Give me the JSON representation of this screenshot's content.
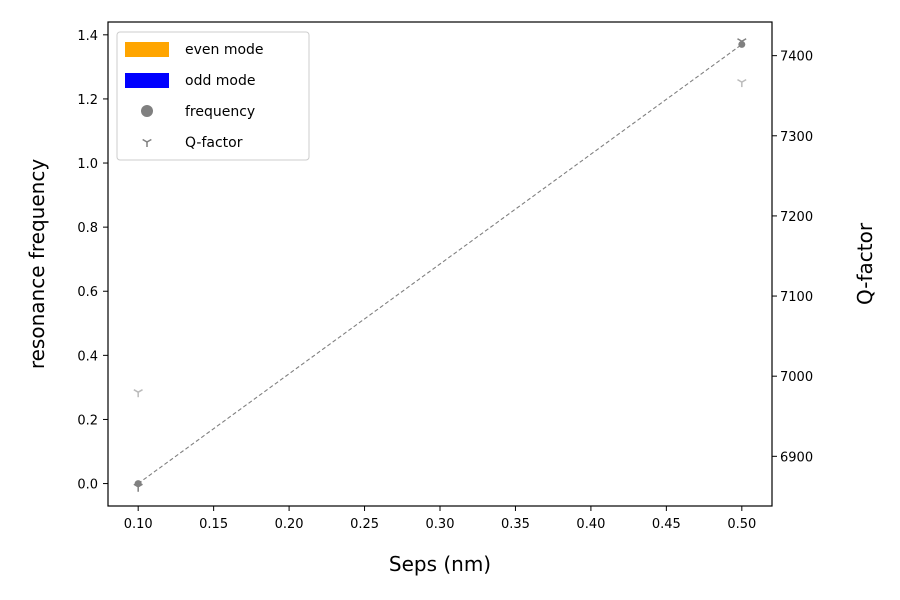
{
  "chart_data": {
    "type": "scatter",
    "xlabel": "Seps (nm)",
    "ylabel": "resonance frequency",
    "y2label": "Q-factor",
    "xlim": [
      0.08,
      0.52
    ],
    "ylim": [
      -0.07,
      1.44
    ],
    "y2lim": [
      6838,
      7442
    ],
    "xticks": [
      "0.10",
      "0.15",
      "0.20",
      "0.25",
      "0.30",
      "0.35",
      "0.40",
      "0.45",
      "0.50"
    ],
    "yticks": [
      "0.0",
      "0.2",
      "0.4",
      "0.6",
      "0.8",
      "1.0",
      "1.2",
      "1.4"
    ],
    "y2ticks": [
      "6900",
      "7000",
      "7100",
      "7200",
      "7300",
      "7400"
    ],
    "grid": false,
    "legend_position": "top-left",
    "legend": [
      {
        "label": "even mode",
        "kind": "patch",
        "color": "#ffa500"
      },
      {
        "label": "odd mode",
        "kind": "patch",
        "color": "#0000ff"
      },
      {
        "label": "frequency",
        "kind": "circle",
        "color": "#808080"
      },
      {
        "label": "Q-factor",
        "kind": "tri",
        "color": "#808080"
      }
    ],
    "series": [
      {
        "kind": "frequency",
        "axis": "left",
        "x": [
          0.1,
          0.5
        ],
        "y": [
          0.0,
          1.37
        ],
        "color": "#808080",
        "line": "dashed"
      },
      {
        "kind": "Q-factor",
        "axis": "right",
        "x": [
          0.1,
          0.5
        ],
        "y": [
          6980,
          7367
        ],
        "color": "#bbbbbb"
      },
      {
        "kind": "Q-factor",
        "axis": "right",
        "x": [
          0.1,
          0.5
        ],
        "y": [
          6862,
          7418
        ],
        "color": "#808080"
      }
    ]
  }
}
